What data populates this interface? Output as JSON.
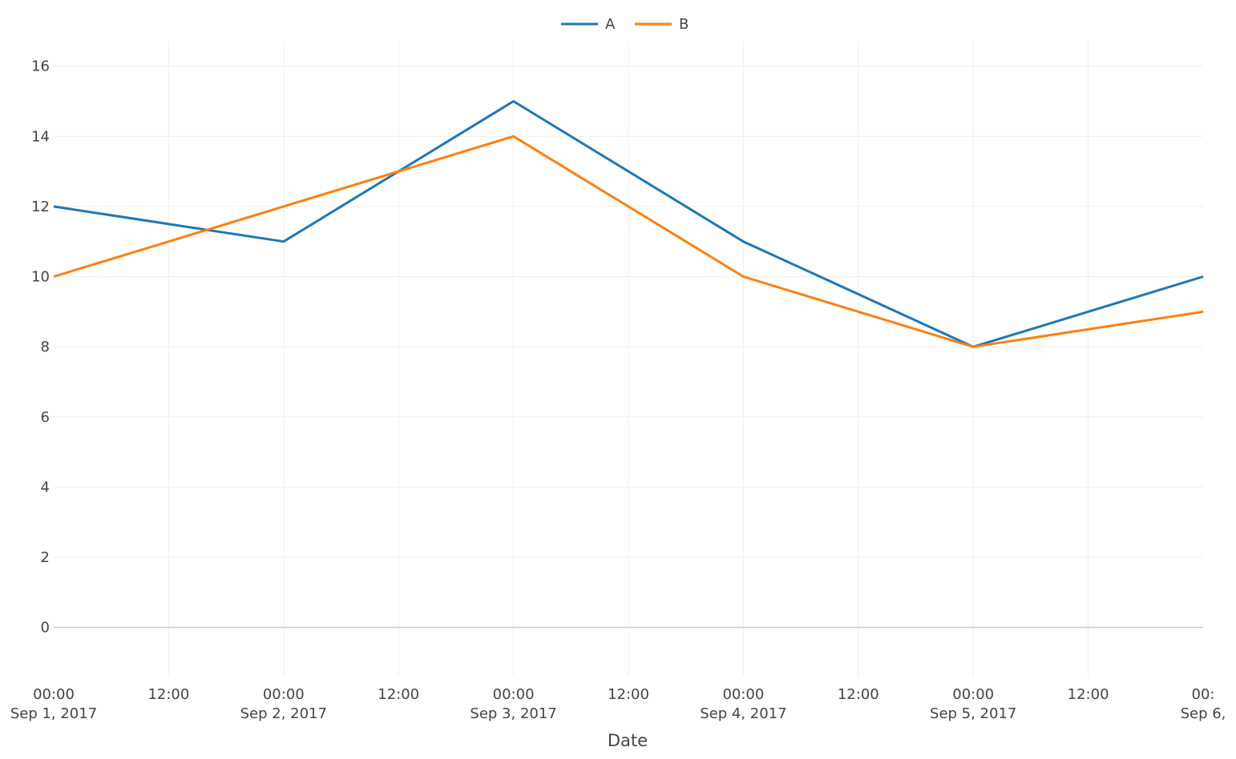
{
  "chart_data": {
    "type": "line",
    "title": "",
    "xlabel": "Date",
    "ylabel": "",
    "x": [
      "2017-09-01",
      "2017-09-02",
      "2017-09-03",
      "2017-09-04",
      "2017-09-05",
      "2017-09-06"
    ],
    "series": [
      {
        "name": "A",
        "color": "#1f77b4",
        "values": [
          12,
          11,
          15,
          11,
          8,
          10
        ]
      },
      {
        "name": "B",
        "color": "#ff7f0e",
        "values": [
          10,
          12,
          14,
          10,
          8,
          9
        ]
      }
    ],
    "ylim": [
      -1.4,
      16.7
    ],
    "xlim": [
      "2017-09-01 00:00",
      "2017-09-06 00:00"
    ],
    "yticks": [
      0,
      2,
      4,
      6,
      8,
      10,
      12,
      14,
      16
    ],
    "yticklabels": [
      "0",
      "2",
      "4",
      "6",
      "8",
      "10",
      "12",
      "14",
      "16"
    ],
    "xticks": [
      {
        "line1": "00:00",
        "line2": "Sep 1, 2017"
      },
      {
        "line1": "12:00",
        "line2": ""
      },
      {
        "line1": "00:00",
        "line2": "Sep 2, 2017"
      },
      {
        "line1": "12:00",
        "line2": ""
      },
      {
        "line1": "00:00",
        "line2": "Sep 3, 2017"
      },
      {
        "line1": "12:00",
        "line2": ""
      },
      {
        "line1": "00:00",
        "line2": "Sep 4, 2017"
      },
      {
        "line1": "12:00",
        "line2": ""
      },
      {
        "line1": "00:00",
        "line2": "Sep 5, 2017"
      },
      {
        "line1": "12:00",
        "line2": ""
      },
      {
        "line1": "00:",
        "line2": "Sep 6,"
      }
    ],
    "grid": true,
    "legend": {
      "placement": "top-center",
      "orientation": "horizontal"
    },
    "grid_color": "#eeeeee",
    "zero_line_color": "#cccccc"
  }
}
